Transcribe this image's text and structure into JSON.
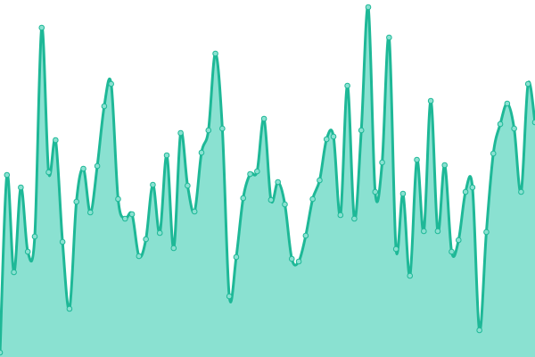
{
  "chart_data": {
    "type": "area",
    "color": "#1eb897",
    "fill": "#8ae1d1",
    "values": [
      5,
      204,
      95,
      190,
      118,
      135,
      369,
      207,
      243,
      129,
      54,
      174,
      211,
      162,
      214,
      281,
      306,
      177,
      155,
      160,
      113,
      132,
      193,
      139,
      226,
      122,
      251,
      192,
      163,
      229,
      254,
      340,
      256,
      68,
      112,
      178,
      205,
      208,
      267,
      176,
      196,
      171,
      110,
      107,
      136,
      177,
      198,
      244,
      247,
      159,
      304,
      155,
      254,
      392,
      185,
      218,
      358,
      121,
      183,
      91,
      221,
      141,
      287,
      141,
      215,
      118,
      131,
      185,
      190,
      30,
      140,
      228,
      261,
      284,
      256,
      185,
      306,
      263
    ],
    "ylim": [
      0,
      400
    ]
  }
}
